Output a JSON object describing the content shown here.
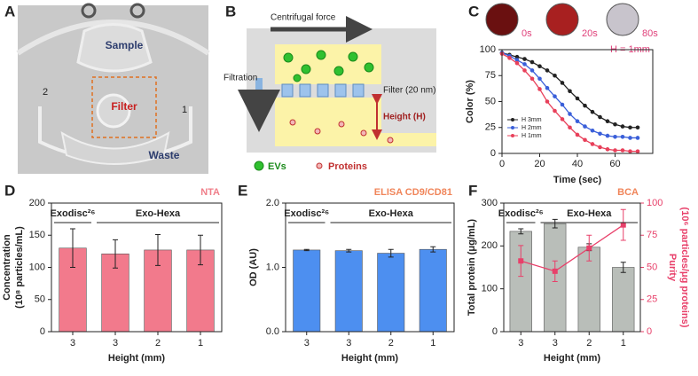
{
  "panel_a": {
    "label": "A",
    "sample": "Sample",
    "filter": "Filter",
    "waste": "Waste",
    "port_left": "2",
    "port_right": "1"
  },
  "panel_b": {
    "label": "B",
    "centrifugal": "Centrifugal force",
    "filtration": "Filtration",
    "filter": "Filter (20 nm)",
    "height": "Height (H)",
    "evs": "EVs",
    "proteins": "Proteins"
  },
  "chart_data": [
    {
      "type": "line",
      "panel": "C",
      "xlabel": "Time (sec)",
      "ylabel": [
        "Color (%)"
      ],
      "insets": [
        "0s",
        "20s",
        "80s"
      ],
      "inset_note": "H = 1mm",
      "x": [
        0,
        4,
        8,
        12,
        16,
        20,
        24,
        28,
        32,
        36,
        40,
        44,
        48,
        52,
        56,
        60,
        64,
        68,
        72
      ],
      "xlim": [
        0,
        80
      ],
      "xticks": [
        0,
        20,
        40,
        60
      ],
      "ylim": [
        0,
        100
      ],
      "yticks": [
        0,
        25,
        50,
        75,
        100
      ],
      "legend": "lower left",
      "series": [
        {
          "name": "H  3mm",
          "color": "#222222",
          "values": [
            97,
            95,
            93,
            91,
            88,
            84,
            80,
            75,
            68,
            60,
            53,
            46,
            40,
            35,
            31,
            28,
            26,
            25,
            25
          ]
        },
        {
          "name": "H  2mm",
          "color": "#3a5fd9",
          "values": [
            97,
            94,
            90,
            86,
            80,
            72,
            63,
            55,
            47,
            38,
            31,
            26,
            22,
            19,
            17,
            16,
            16,
            15,
            15
          ]
        },
        {
          "name": "H  1mm",
          "color": "#e8405a",
          "values": [
            96,
            92,
            87,
            80,
            72,
            62,
            50,
            41,
            33,
            25,
            18,
            13,
            9,
            6,
            4,
            3,
            3,
            2,
            2
          ]
        }
      ]
    },
    {
      "type": "bar",
      "panel": "D",
      "annotation": "NTA",
      "annotation_color": "#f07f8a",
      "xlabel": "Height (mm)",
      "ylabel": [
        "Concentration",
        "(10⁸ particles/mL)"
      ],
      "groups": [
        "Exodisc²⁶",
        "Exo-Hexa"
      ],
      "categories": [
        "3",
        "3",
        "2",
        "1"
      ],
      "ylim": [
        0,
        200
      ],
      "yticks": [
        0,
        50,
        100,
        150,
        200
      ],
      "series": [
        {
          "color": "#f27a8c",
          "values": [
            130,
            121,
            127,
            127
          ],
          "errors": [
            30,
            22,
            24,
            23
          ]
        }
      ]
    },
    {
      "type": "bar",
      "panel": "E",
      "annotation": "ELISA CD9/CD81",
      "annotation_color": "#f0855a",
      "xlabel": "Height (mm)",
      "ylabel": [
        "OD (AU)"
      ],
      "groups": [
        "Exodisc²⁶",
        "Exo-Hexa"
      ],
      "categories": [
        "3",
        "3",
        "2",
        "1"
      ],
      "ylim": [
        0,
        2
      ],
      "yticks": [
        {
          "value": 0,
          "label": "0.0"
        },
        {
          "value": 1,
          "label": "1.0"
        },
        {
          "value": 2,
          "label": "2.0"
        }
      ],
      "series": [
        {
          "color": "#4d8ff0",
          "values": [
            1.27,
            1.26,
            1.22,
            1.28
          ],
          "errors": [
            0.01,
            0.02,
            0.06,
            0.04
          ]
        }
      ]
    },
    {
      "type": "bar",
      "panel": "F",
      "annotation": "BCA",
      "annotation_color": "#f0855a",
      "xlabel": "Height (mm)",
      "ylabel": [
        "Total protein (μg/mL)"
      ],
      "y2label": [
        "Purity",
        "(10⁶ particles/μg proteins)"
      ],
      "y2color": "#e8406a",
      "groups": [
        "Exodisc²⁶",
        "Exo-Hexa"
      ],
      "categories": [
        "3",
        "3",
        "2",
        "1"
      ],
      "ylim": [
        0,
        300
      ],
      "yticks": [
        0,
        100,
        200,
        300
      ],
      "y2lim": [
        0,
        100
      ],
      "y2ticks": [
        0,
        25,
        50,
        75,
        100
      ],
      "series": [
        {
          "color": "#b9beb9",
          "values": [
            234,
            252,
            197,
            150
          ],
          "errors": [
            6,
            10,
            8,
            12
          ]
        },
        {
          "color": "#e8406a",
          "axis": "y2",
          "values": [
            55,
            47,
            65,
            83
          ],
          "errors": [
            12,
            8,
            10,
            12
          ]
        }
      ]
    }
  ]
}
